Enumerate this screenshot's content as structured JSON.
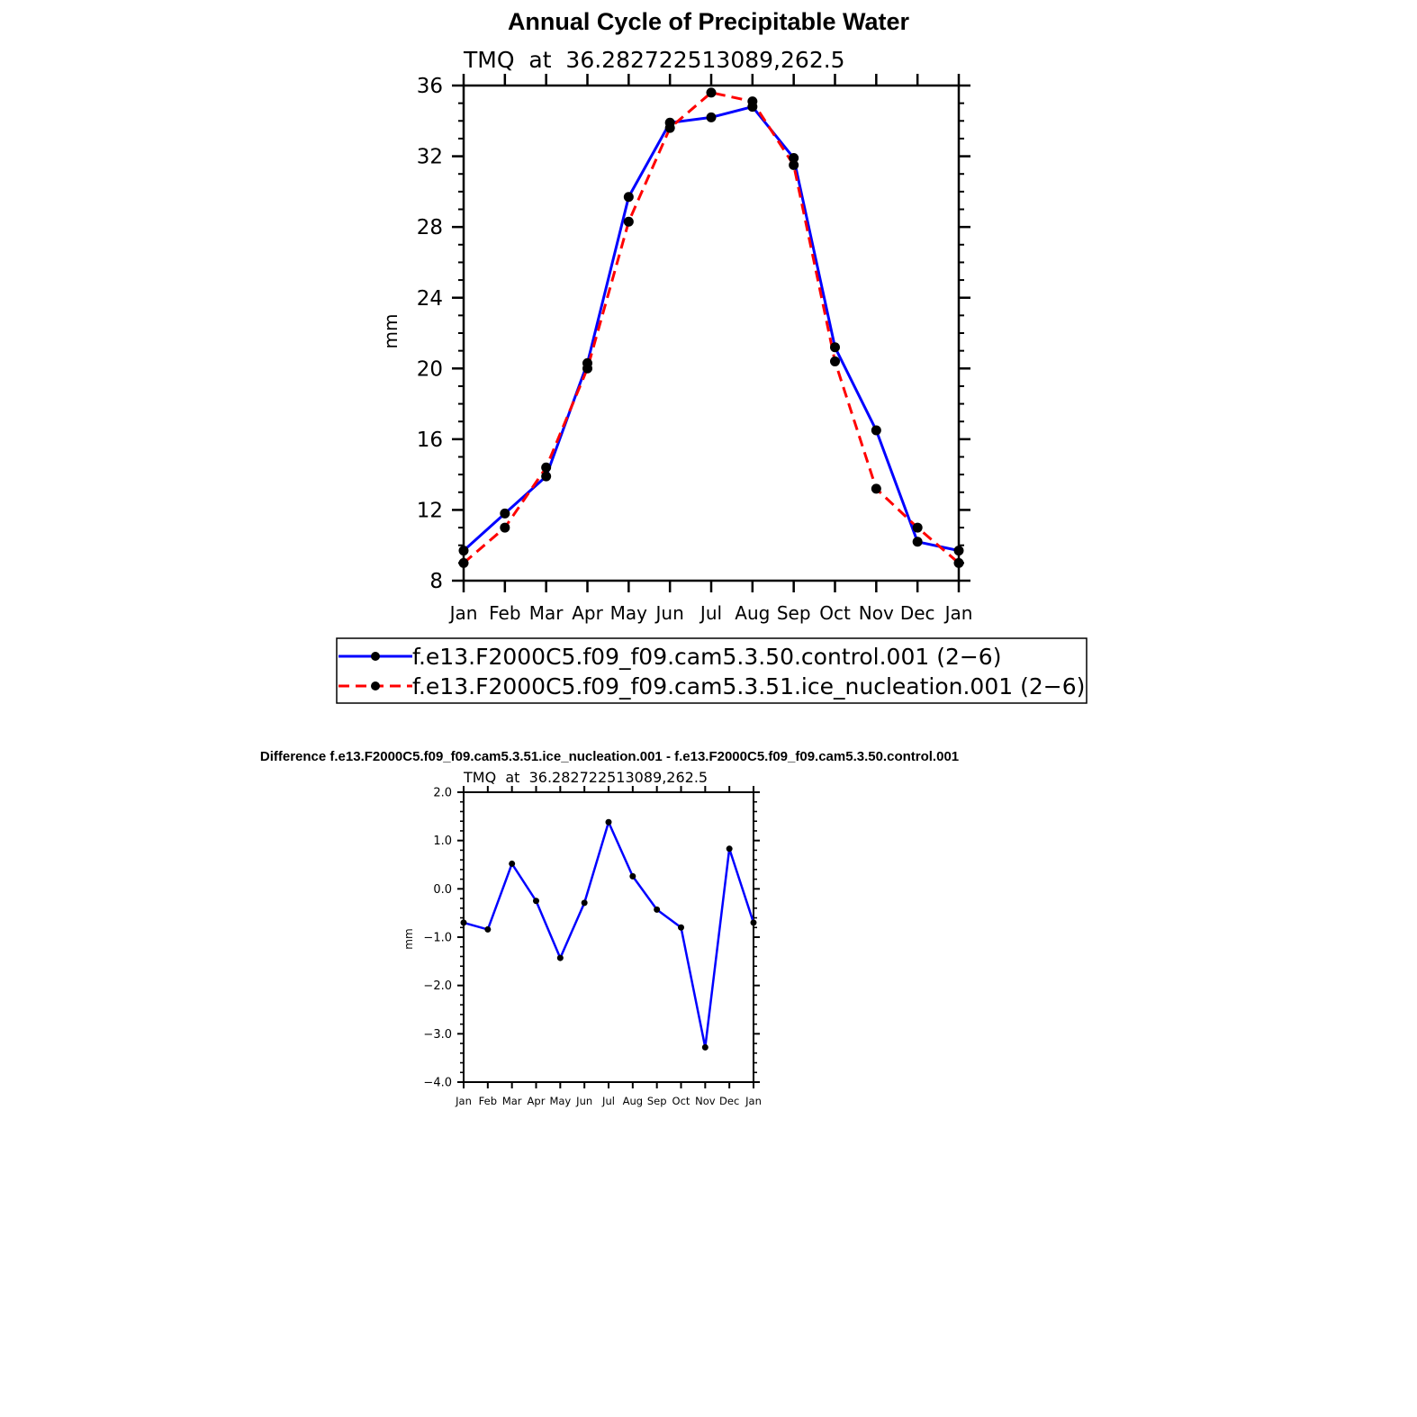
{
  "colors": {
    "control": "#0000ff",
    "ice_nucleation": "#ff0000",
    "markers": "#000000",
    "axes": "#000000",
    "background": "#ffffff"
  },
  "chart_data": [
    {
      "type": "line",
      "title": "Annual Cycle of Precipitable Water",
      "subtitle": "TMQ  at  36.282722513089,262.5",
      "xlabel": "",
      "ylabel": "mm",
      "categories": [
        "Jan",
        "Feb",
        "Mar",
        "Apr",
        "May",
        "Jun",
        "Jul",
        "Aug",
        "Sep",
        "Oct",
        "Nov",
        "Dec",
        "Jan"
      ],
      "ylim": [
        8,
        36
      ],
      "yticks": [
        8,
        12,
        16,
        20,
        24,
        28,
        32,
        36
      ],
      "ytick_labels": [
        "8",
        "12",
        "16",
        "20",
        "24",
        "28",
        "32",
        "36"
      ],
      "grid": false,
      "legend": "bottom",
      "series": [
        {
          "name": "f.e13.F2000C5.f09_f09.cam5.3.50.control.001 (2−6)",
          "style": "solid",
          "color": "#0000ff",
          "values": [
            9.7,
            11.8,
            13.9,
            20.3,
            29.7,
            33.9,
            34.2,
            34.8,
            31.9,
            21.2,
            16.5,
            10.2,
            9.7
          ]
        },
        {
          "name": "f.e13.F2000C5.f09_f09.cam5.3.51.ice_nucleation.001 (2−6)",
          "style": "dashed",
          "color": "#ff0000",
          "values": [
            9.0,
            11.0,
            14.4,
            20.0,
            28.3,
            33.6,
            35.6,
            35.1,
            31.5,
            20.4,
            13.2,
            11.0,
            9.0
          ]
        }
      ]
    },
    {
      "type": "line",
      "title": "Difference f.e13.F2000C5.f09_f09.cam5.3.51.ice_nucleation.001 - f.e13.F2000C5.f09_f09.cam5.3.50.control.001",
      "subtitle": "TMQ  at  36.282722513089,262.5",
      "xlabel": "",
      "ylabel": "mm",
      "categories": [
        "Jan",
        "Feb",
        "Mar",
        "Apr",
        "May",
        "Jun",
        "Jul",
        "Aug",
        "Sep",
        "Oct",
        "Nov",
        "Dec",
        "Jan"
      ],
      "ylim": [
        -4.0,
        2.0
      ],
      "yticks": [
        -4,
        -3,
        -2,
        -1,
        0,
        1,
        2
      ],
      "ytick_labels": [
        "−4.0",
        "−3.0",
        "−2.0",
        "−1.0",
        "0.0",
        "1.0",
        "2.0"
      ],
      "grid": false,
      "series": [
        {
          "style": "solid",
          "color": "#0000ff",
          "values": [
            -0.7,
            -0.84,
            0.52,
            -0.25,
            -1.43,
            -0.29,
            1.38,
            0.26,
            -0.43,
            -0.8,
            -3.28,
            0.83,
            -0.7
          ]
        }
      ]
    }
  ]
}
